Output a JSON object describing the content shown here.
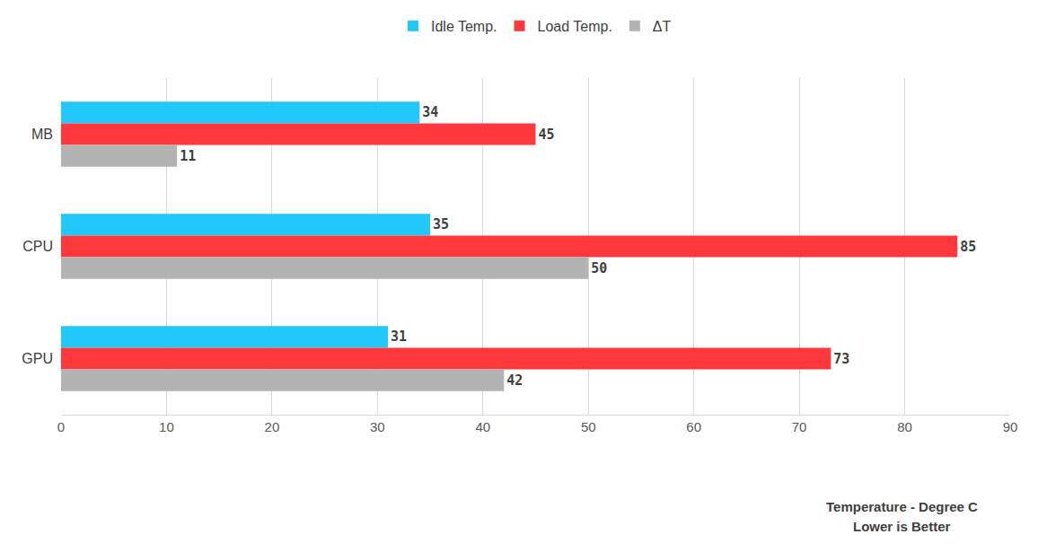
{
  "chart_data": {
    "type": "bar",
    "orientation": "horizontal",
    "categories": [
      "MB",
      "CPU",
      "GPU"
    ],
    "series": [
      {
        "name": "Idle Temp.",
        "color": "#22c8fb",
        "values": [
          34,
          35,
          31
        ]
      },
      {
        "name": "Load Temp.",
        "color": "#ff383d",
        "values": [
          45,
          85,
          73
        ]
      },
      {
        "name": "ΔT",
        "color": "#b3b3b3",
        "values": [
          11,
          50,
          42
        ]
      }
    ],
    "xlim": [
      0,
      90
    ],
    "xticks": [
      0,
      10,
      20,
      30,
      40,
      50,
      60,
      70,
      80,
      90
    ],
    "x_label": "Temperature - Degree C",
    "annotations": [
      "Lower is Better"
    ],
    "grid": true,
    "legend": "top",
    "data_labels": true
  }
}
